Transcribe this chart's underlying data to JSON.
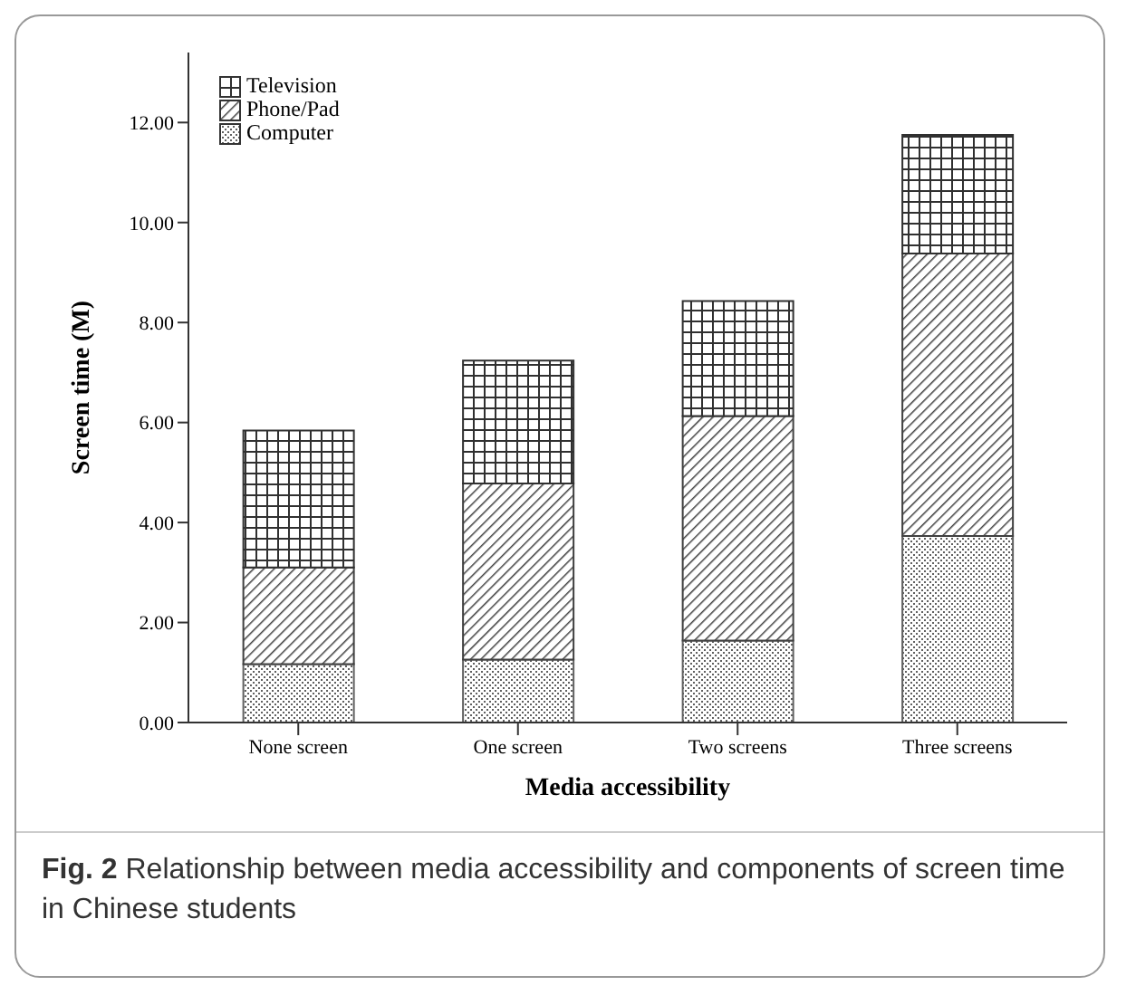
{
  "chart_data": {
    "type": "bar",
    "stacked": true,
    "xlabel": "Media accessibility",
    "ylabel": "Screen time (M)",
    "categories": [
      "None screen",
      "One screen",
      "Two screens",
      "Three screens"
    ],
    "series": [
      {
        "name": "Computer",
        "color": "#606060",
        "values": [
          1.17,
          1.26,
          1.64,
          3.73
        ]
      },
      {
        "name": "Phone/Pad",
        "color": "#404040",
        "values": [
          1.93,
          3.52,
          4.49,
          5.65
        ]
      },
      {
        "name": "Television",
        "color": "#303030",
        "values": [
          2.74,
          2.46,
          2.3,
          2.37
        ]
      }
    ],
    "ylim": [
      0,
      13.4
    ],
    "yticks": [
      {
        "value": 0,
        "label": "0.00"
      },
      {
        "value": 2,
        "label": "2.00"
      },
      {
        "value": 4,
        "label": "4.00"
      },
      {
        "value": 6,
        "label": "6.00"
      },
      {
        "value": 8,
        "label": "8.00"
      },
      {
        "value": 10,
        "label": "10.00"
      },
      {
        "value": 12,
        "label": "12.00"
      }
    ],
    "grid": false,
    "legend": "top left",
    "annotations": [
      "Fig. 2 Relationship between media accessibility and components of screen time in Chinese students"
    ]
  }
}
